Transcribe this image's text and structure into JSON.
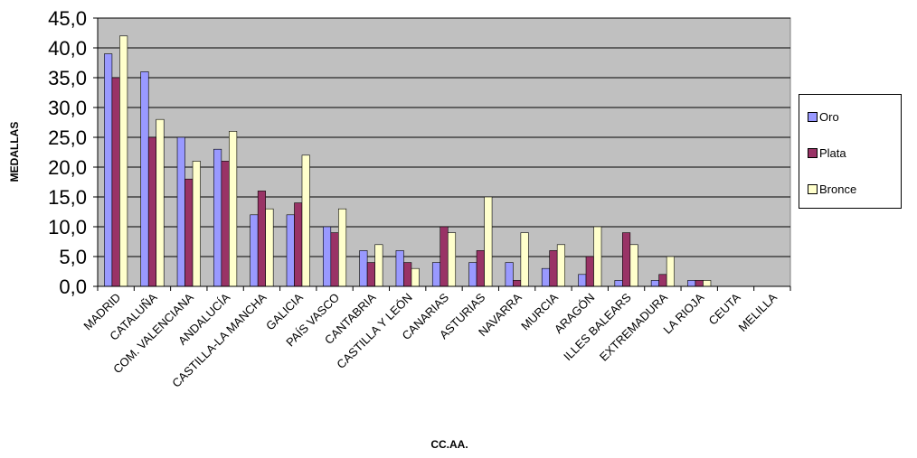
{
  "chart_data": {
    "type": "bar",
    "categories": [
      "MADRID",
      "CATALUÑA",
      "COM. VALENCIANA",
      "ANDALUCÍA",
      "CASTILLA-LA MANCHA",
      "GALICIA",
      "PAÍS VASCO",
      "CANTABRIA",
      "CASTILLA Y LEÓN",
      "CANARIAS",
      "ASTURIAS",
      "NAVARRA",
      "MURCIA",
      "ARAGÓN",
      "ILLES BALEARS",
      "EXTREMADURA",
      "LA RIOJA",
      "CEUTA",
      "MELILLA"
    ],
    "series": [
      {
        "name": "Oro",
        "color": "#9999ff",
        "values": [
          39,
          36,
          25,
          23,
          12,
          12,
          10,
          6,
          6,
          4,
          4,
          4,
          3,
          2,
          1,
          1,
          1,
          0,
          0
        ]
      },
      {
        "name": "Plata",
        "color": "#993366",
        "values": [
          35,
          25,
          18,
          21,
          16,
          14,
          9,
          4,
          4,
          10,
          6,
          1,
          6,
          5,
          9,
          2,
          1,
          0,
          0
        ]
      },
      {
        "name": "Bronce",
        "color": "#ffffcc",
        "values": [
          42,
          28,
          21,
          26,
          13,
          22,
          13,
          7,
          3,
          9,
          15,
          9,
          7,
          10,
          7,
          5,
          1,
          0,
          0
        ]
      }
    ],
    "yticks": [
      "0,0",
      "5,0",
      "10,0",
      "15,0",
      "20,0",
      "25,0",
      "30,0",
      "35,0",
      "40,0",
      "45,0"
    ],
    "xlabel": "CC.AA.",
    "ylabel": "MEDALLAS",
    "ylim": [
      0,
      45
    ],
    "grid": true,
    "plot_background": "#c0c0c0",
    "legend": "right"
  }
}
